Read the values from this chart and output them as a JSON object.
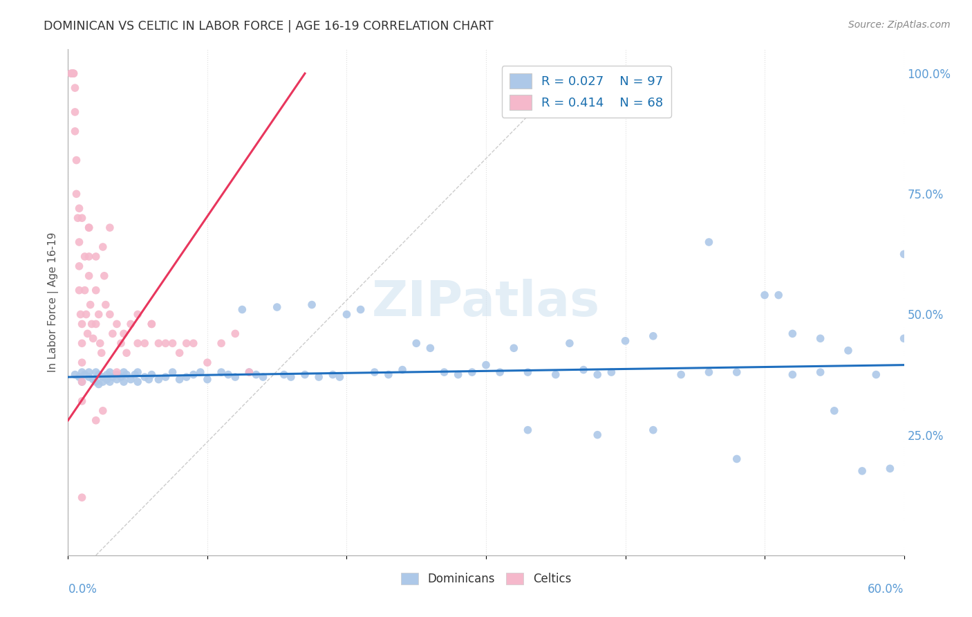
{
  "title": "DOMINICAN VS CELTIC IN LABOR FORCE | AGE 16-19 CORRELATION CHART",
  "source": "Source: ZipAtlas.com",
  "ylabel": "In Labor Force | Age 16-19",
  "ytick_labels": [
    "25.0%",
    "50.0%",
    "75.0%",
    "100.0%"
  ],
  "ytick_values": [
    0.25,
    0.5,
    0.75,
    1.0
  ],
  "xmin": 0.0,
  "xmax": 0.6,
  "ymin": 0.0,
  "ymax": 1.05,
  "blue_color": "#adc8e8",
  "pink_color": "#f5b8cb",
  "blue_line_color": "#1f6fbf",
  "pink_line_color": "#e8365d",
  "legend_R1": "0.027",
  "legend_N1": "97",
  "legend_R2": "0.414",
  "legend_N2": "68",
  "watermark": "ZIPatlas",
  "blue_scatter_x": [
    0.005,
    0.008,
    0.01,
    0.01,
    0.012,
    0.015,
    0.015,
    0.018,
    0.02,
    0.02,
    0.022,
    0.022,
    0.025,
    0.025,
    0.028,
    0.028,
    0.03,
    0.03,
    0.032,
    0.035,
    0.035,
    0.038,
    0.04,
    0.04,
    0.042,
    0.045,
    0.048,
    0.05,
    0.05,
    0.055,
    0.058,
    0.06,
    0.065,
    0.07,
    0.075,
    0.08,
    0.085,
    0.09,
    0.095,
    0.1,
    0.11,
    0.115,
    0.12,
    0.125,
    0.13,
    0.135,
    0.14,
    0.15,
    0.155,
    0.16,
    0.17,
    0.175,
    0.18,
    0.19,
    0.195,
    0.2,
    0.21,
    0.22,
    0.23,
    0.24,
    0.25,
    0.26,
    0.27,
    0.28,
    0.29,
    0.3,
    0.31,
    0.32,
    0.33,
    0.35,
    0.36,
    0.37,
    0.38,
    0.39,
    0.4,
    0.42,
    0.44,
    0.46,
    0.48,
    0.5,
    0.51,
    0.52,
    0.54,
    0.55,
    0.56,
    0.58,
    0.59,
    0.6,
    0.46,
    0.52,
    0.54,
    0.48,
    0.57,
    0.6,
    0.38,
    0.42,
    0.33
  ],
  "blue_scatter_y": [
    0.375,
    0.37,
    0.38,
    0.36,
    0.375,
    0.38,
    0.37,
    0.365,
    0.38,
    0.36,
    0.375,
    0.355,
    0.37,
    0.36,
    0.375,
    0.365,
    0.38,
    0.36,
    0.37,
    0.375,
    0.365,
    0.37,
    0.38,
    0.36,
    0.375,
    0.365,
    0.375,
    0.38,
    0.36,
    0.37,
    0.365,
    0.375,
    0.365,
    0.37,
    0.38,
    0.365,
    0.37,
    0.375,
    0.38,
    0.365,
    0.38,
    0.375,
    0.37,
    0.51,
    0.38,
    0.375,
    0.37,
    0.515,
    0.375,
    0.37,
    0.375,
    0.52,
    0.37,
    0.375,
    0.37,
    0.5,
    0.51,
    0.38,
    0.375,
    0.385,
    0.44,
    0.43,
    0.38,
    0.375,
    0.38,
    0.395,
    0.38,
    0.43,
    0.38,
    0.375,
    0.44,
    0.385,
    0.375,
    0.38,
    0.445,
    0.455,
    0.375,
    0.38,
    0.38,
    0.54,
    0.54,
    0.375,
    0.38,
    0.3,
    0.425,
    0.375,
    0.18,
    0.625,
    0.65,
    0.46,
    0.45,
    0.2,
    0.175,
    0.45,
    0.25,
    0.26,
    0.26
  ],
  "pink_scatter_x": [
    0.002,
    0.003,
    0.003,
    0.004,
    0.004,
    0.005,
    0.005,
    0.005,
    0.006,
    0.006,
    0.007,
    0.008,
    0.008,
    0.008,
    0.009,
    0.01,
    0.01,
    0.01,
    0.01,
    0.01,
    0.012,
    0.012,
    0.013,
    0.014,
    0.015,
    0.015,
    0.015,
    0.016,
    0.017,
    0.018,
    0.02,
    0.02,
    0.02,
    0.022,
    0.023,
    0.024,
    0.025,
    0.026,
    0.027,
    0.03,
    0.032,
    0.035,
    0.038,
    0.04,
    0.042,
    0.045,
    0.05,
    0.055,
    0.06,
    0.065,
    0.07,
    0.075,
    0.08,
    0.085,
    0.09,
    0.1,
    0.11,
    0.12,
    0.13,
    0.008,
    0.01,
    0.015,
    0.02,
    0.025,
    0.03,
    0.035,
    0.05,
    0.06
  ],
  "pink_scatter_y": [
    1.0,
    1.0,
    1.0,
    1.0,
    1.0,
    0.97,
    0.92,
    0.88,
    0.82,
    0.75,
    0.7,
    0.65,
    0.6,
    0.55,
    0.5,
    0.48,
    0.44,
    0.4,
    0.36,
    0.32,
    0.62,
    0.55,
    0.5,
    0.46,
    0.68,
    0.62,
    0.58,
    0.52,
    0.48,
    0.45,
    0.62,
    0.55,
    0.48,
    0.5,
    0.44,
    0.42,
    0.64,
    0.58,
    0.52,
    0.5,
    0.46,
    0.48,
    0.44,
    0.46,
    0.42,
    0.48,
    0.44,
    0.44,
    0.48,
    0.44,
    0.44,
    0.44,
    0.42,
    0.44,
    0.44,
    0.4,
    0.44,
    0.46,
    0.38,
    0.72,
    0.7,
    0.68,
    0.28,
    0.3,
    0.68,
    0.38,
    0.5,
    0.48
  ],
  "pink_scatter_y_low": [
    0.12
  ],
  "pink_scatter_x_low": [
    0.01
  ],
  "blue_line_x": [
    0.0,
    0.6
  ],
  "blue_line_y": [
    0.37,
    0.395
  ],
  "pink_line_x": [
    0.0,
    0.17
  ],
  "pink_line_y": [
    0.28,
    1.0
  ]
}
